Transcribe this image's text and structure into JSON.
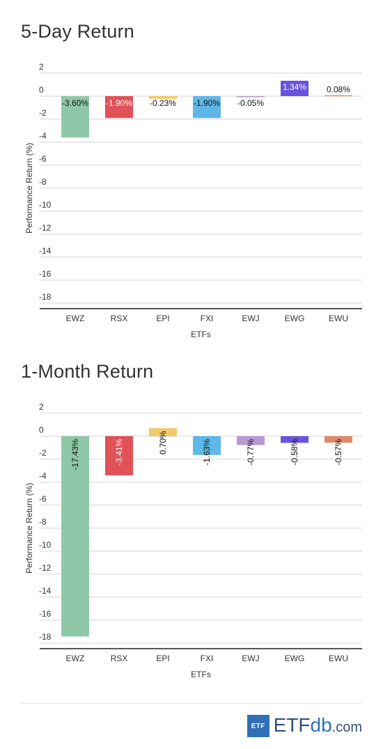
{
  "chart_data": [
    {
      "type": "bar",
      "title": "5-Day Return",
      "xlabel": "ETFs",
      "ylabel": "Performance Return (%)",
      "categories": [
        "EWZ",
        "RSX",
        "EPI",
        "FXI",
        "EWJ",
        "EWG",
        "EWU"
      ],
      "values": [
        -3.6,
        -1.9,
        -0.23,
        -1.9,
        -0.05,
        1.34,
        0.08
      ],
      "data_labels": [
        "-3.60%",
        "-1.90%",
        "-0.23%",
        "-1.90%",
        "-0.05%",
        "1.34%",
        "0.08%"
      ],
      "colors": [
        "#8fc8a8",
        "#e05158",
        "#f0ca6a",
        "#5eb7e6",
        "#b89ad3",
        "#6a52dc",
        "#e08a6a"
      ],
      "yticks": [
        2,
        0,
        -2,
        -4,
        -6,
        -8,
        -10,
        -12,
        -14,
        -16,
        -18
      ],
      "ylim": [
        -18,
        2
      ],
      "grid": true,
      "label_orientation": "horizontal"
    },
    {
      "type": "bar",
      "title": "1-Month Return",
      "xlabel": "ETFs",
      "ylabel": "Performance Return (%)",
      "categories": [
        "EWZ",
        "RSX",
        "EPI",
        "FXI",
        "EWJ",
        "EWG",
        "EWU"
      ],
      "values": [
        -17.43,
        -3.41,
        0.7,
        -1.63,
        -0.77,
        -0.58,
        -0.57
      ],
      "data_labels": [
        "-17.43%",
        "-3.41%",
        "0.70%",
        "-1.63%",
        "-0.77%",
        "-0.58%",
        "-0.57%"
      ],
      "colors": [
        "#8fc8a8",
        "#e05158",
        "#f0ca6a",
        "#5eb7e6",
        "#b89ad3",
        "#6a52dc",
        "#e08a6a"
      ],
      "yticks": [
        2,
        0,
        -2,
        -4,
        -6,
        -8,
        -10,
        -12,
        -14,
        -16,
        -18
      ],
      "ylim": [
        -18,
        2
      ],
      "grid": true,
      "label_orientation": "vertical"
    }
  ],
  "footer": {
    "logo_box": "ETF",
    "logo_main": "ETF",
    "logo_db": "db",
    "logo_com": ".com"
  }
}
